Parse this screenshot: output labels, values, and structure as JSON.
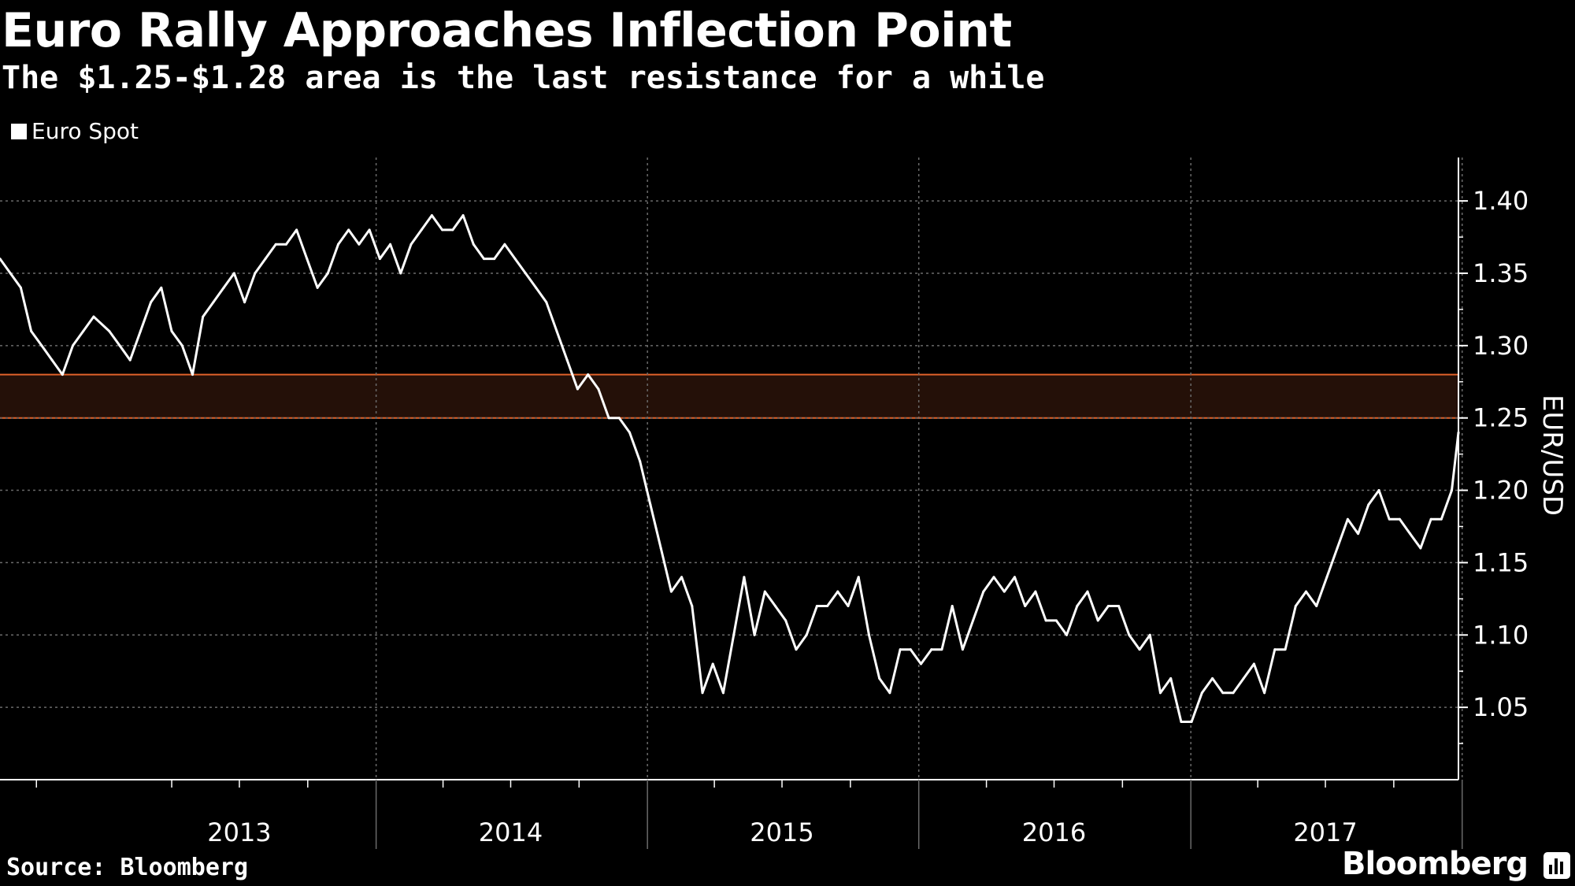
{
  "title": "Euro Rally Approaches Inflection Point",
  "subtitle": "The $1.25-$1.28 area is the last resistance for a while",
  "source": "Source: Bloomberg",
  "brand": "Bloomberg",
  "colors": {
    "background": "#000000",
    "series": "#ffffff",
    "band_fill": "#241008",
    "band_edge": "#e0622a",
    "grid": "#6a6a6a"
  },
  "chart_data": {
    "type": "line",
    "title": "Euro Rally Approaches Inflection Point",
    "subtitle": "The $1.25-$1.28 area is the last resistance for a while",
    "ylabel": "EUR/USD",
    "xlabel": "",
    "ylim": [
      1.0,
      1.43
    ],
    "xlim": [
      "2012-08-13",
      "2017-12-27"
    ],
    "grid": true,
    "legend_position": "top-left",
    "y_ticks": [
      "1.05",
      "1.10",
      "1.15",
      "1.20",
      "1.25",
      "1.30",
      "1.35",
      "1.40"
    ],
    "year_labels": [
      {
        "label": "2013",
        "date": "2013-07-01"
      },
      {
        "label": "2014",
        "date": "2014-07-01"
      },
      {
        "label": "2015",
        "date": "2015-07-01"
      },
      {
        "label": "2016",
        "date": "2016-07-01"
      },
      {
        "label": "2017",
        "date": "2017-07-01"
      }
    ],
    "year_dividers": [
      "2014-01-01",
      "2015-01-01",
      "2016-01-01",
      "2017-01-01",
      "2018-01-01"
    ],
    "resistance_band": [
      1.25,
      1.28
    ],
    "series": [
      {
        "name": "Euro Spot",
        "points": [
          [
            "2012-08-13",
            1.36
          ],
          [
            "2012-08-27",
            1.35
          ],
          [
            "2012-09-10",
            1.34
          ],
          [
            "2012-09-24",
            1.31
          ],
          [
            "2012-10-08",
            1.3
          ],
          [
            "2012-10-22",
            1.29
          ],
          [
            "2012-11-05",
            1.28
          ],
          [
            "2012-11-19",
            1.3
          ],
          [
            "2012-12-03",
            1.31
          ],
          [
            "2012-12-17",
            1.32
          ],
          [
            "2013-01-07",
            1.31
          ],
          [
            "2013-01-21",
            1.3
          ],
          [
            "2013-02-04",
            1.29
          ],
          [
            "2013-02-18",
            1.31
          ],
          [
            "2013-03-04",
            1.33
          ],
          [
            "2013-03-18",
            1.34
          ],
          [
            "2013-04-01",
            1.31
          ],
          [
            "2013-04-15",
            1.3
          ],
          [
            "2013-04-29",
            1.28
          ],
          [
            "2013-05-13",
            1.32
          ],
          [
            "2013-05-27",
            1.33
          ],
          [
            "2013-06-10",
            1.34
          ],
          [
            "2013-06-24",
            1.35
          ],
          [
            "2013-07-08",
            1.33
          ],
          [
            "2013-07-22",
            1.35
          ],
          [
            "2013-08-05",
            1.36
          ],
          [
            "2013-08-19",
            1.37
          ],
          [
            "2013-09-02",
            1.37
          ],
          [
            "2013-09-16",
            1.38
          ],
          [
            "2013-09-30",
            1.36
          ],
          [
            "2013-10-14",
            1.34
          ],
          [
            "2013-10-28",
            1.35
          ],
          [
            "2013-11-11",
            1.37
          ],
          [
            "2013-11-25",
            1.38
          ],
          [
            "2013-12-09",
            1.37
          ],
          [
            "2013-12-23",
            1.38
          ],
          [
            "2014-01-06",
            1.36
          ],
          [
            "2014-01-20",
            1.37
          ],
          [
            "2014-02-03",
            1.35
          ],
          [
            "2014-02-17",
            1.37
          ],
          [
            "2014-03-03",
            1.38
          ],
          [
            "2014-03-17",
            1.39
          ],
          [
            "2014-03-31",
            1.38
          ],
          [
            "2014-04-14",
            1.38
          ],
          [
            "2014-04-28",
            1.39
          ],
          [
            "2014-05-12",
            1.37
          ],
          [
            "2014-05-26",
            1.36
          ],
          [
            "2014-06-09",
            1.36
          ],
          [
            "2014-06-23",
            1.37
          ],
          [
            "2014-07-07",
            1.36
          ],
          [
            "2014-07-21",
            1.35
          ],
          [
            "2014-08-04",
            1.34
          ],
          [
            "2014-08-18",
            1.33
          ],
          [
            "2014-09-01",
            1.31
          ],
          [
            "2014-09-15",
            1.29
          ],
          [
            "2014-09-29",
            1.27
          ],
          [
            "2014-10-13",
            1.28
          ],
          [
            "2014-10-27",
            1.27
          ],
          [
            "2014-11-10",
            1.25
          ],
          [
            "2014-11-24",
            1.25
          ],
          [
            "2014-12-08",
            1.24
          ],
          [
            "2014-12-22",
            1.22
          ],
          [
            "2015-01-05",
            1.19
          ],
          [
            "2015-01-19",
            1.16
          ],
          [
            "2015-02-02",
            1.13
          ],
          [
            "2015-02-16",
            1.14
          ],
          [
            "2015-03-02",
            1.12
          ],
          [
            "2015-03-16",
            1.06
          ],
          [
            "2015-03-30",
            1.08
          ],
          [
            "2015-04-13",
            1.06
          ],
          [
            "2015-04-27",
            1.1
          ],
          [
            "2015-05-11",
            1.14
          ],
          [
            "2015-05-25",
            1.1
          ],
          [
            "2015-06-08",
            1.13
          ],
          [
            "2015-06-22",
            1.12
          ],
          [
            "2015-07-06",
            1.11
          ],
          [
            "2015-07-20",
            1.09
          ],
          [
            "2015-08-03",
            1.1
          ],
          [
            "2015-08-17",
            1.12
          ],
          [
            "2015-08-31",
            1.12
          ],
          [
            "2015-09-14",
            1.13
          ],
          [
            "2015-09-28",
            1.12
          ],
          [
            "2015-10-12",
            1.14
          ],
          [
            "2015-10-26",
            1.1
          ],
          [
            "2015-11-09",
            1.07
          ],
          [
            "2015-11-23",
            1.06
          ],
          [
            "2015-12-07",
            1.09
          ],
          [
            "2015-12-21",
            1.09
          ],
          [
            "2016-01-04",
            1.08
          ],
          [
            "2016-01-18",
            1.09
          ],
          [
            "2016-02-01",
            1.09
          ],
          [
            "2016-02-15",
            1.12
          ],
          [
            "2016-02-29",
            1.09
          ],
          [
            "2016-03-14",
            1.11
          ],
          [
            "2016-03-28",
            1.13
          ],
          [
            "2016-04-11",
            1.14
          ],
          [
            "2016-04-25",
            1.13
          ],
          [
            "2016-05-09",
            1.14
          ],
          [
            "2016-05-23",
            1.12
          ],
          [
            "2016-06-06",
            1.13
          ],
          [
            "2016-06-20",
            1.11
          ],
          [
            "2016-07-04",
            1.11
          ],
          [
            "2016-07-18",
            1.1
          ],
          [
            "2016-08-01",
            1.12
          ],
          [
            "2016-08-15",
            1.13
          ],
          [
            "2016-08-29",
            1.11
          ],
          [
            "2016-09-12",
            1.12
          ],
          [
            "2016-09-26",
            1.12
          ],
          [
            "2016-10-10",
            1.1
          ],
          [
            "2016-10-24",
            1.09
          ],
          [
            "2016-11-07",
            1.1
          ],
          [
            "2016-11-21",
            1.06
          ],
          [
            "2016-12-05",
            1.07
          ],
          [
            "2016-12-19",
            1.04
          ],
          [
            "2017-01-02",
            1.04
          ],
          [
            "2017-01-16",
            1.06
          ],
          [
            "2017-01-30",
            1.07
          ],
          [
            "2017-02-13",
            1.06
          ],
          [
            "2017-02-27",
            1.06
          ],
          [
            "2017-03-13",
            1.07
          ],
          [
            "2017-03-27",
            1.08
          ],
          [
            "2017-04-10",
            1.06
          ],
          [
            "2017-04-24",
            1.09
          ],
          [
            "2017-05-08",
            1.09
          ],
          [
            "2017-05-22",
            1.12
          ],
          [
            "2017-06-05",
            1.13
          ],
          [
            "2017-06-19",
            1.12
          ],
          [
            "2017-07-03",
            1.14
          ],
          [
            "2017-07-17",
            1.16
          ],
          [
            "2017-07-31",
            1.18
          ],
          [
            "2017-08-14",
            1.17
          ],
          [
            "2017-08-28",
            1.19
          ],
          [
            "2017-09-11",
            1.2
          ],
          [
            "2017-09-25",
            1.18
          ],
          [
            "2017-10-09",
            1.18
          ],
          [
            "2017-10-23",
            1.17
          ],
          [
            "2017-11-06",
            1.16
          ],
          [
            "2017-11-20",
            1.18
          ],
          [
            "2017-12-04",
            1.18
          ],
          [
            "2017-12-18",
            1.2
          ],
          [
            "2017-12-27",
            1.24
          ]
        ]
      }
    ]
  }
}
